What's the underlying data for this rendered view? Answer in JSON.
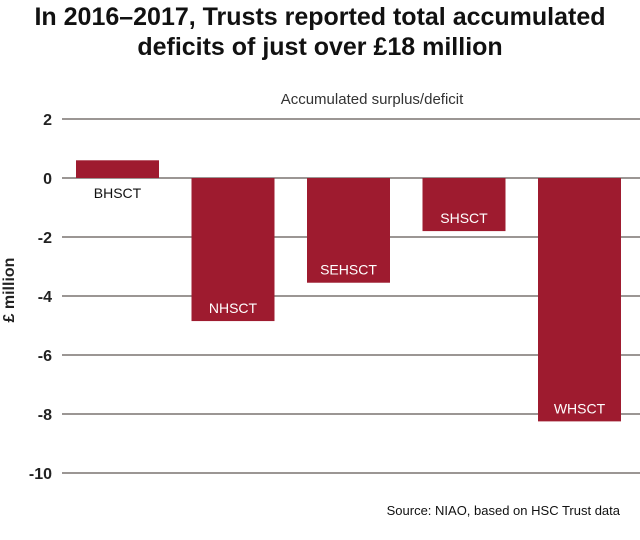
{
  "chart_data": {
    "type": "bar",
    "title": "In 2016–2017, Trusts reported total accumulated deficits of just over £18 million",
    "subtitle": "Accumulated surplus/deficit",
    "xlabel": "",
    "ylabel": "£ million",
    "categories": [
      "BHSCT",
      "NHSCT",
      "SEHSCT",
      "SHSCT",
      "WHSCT"
    ],
    "values": [
      0.6,
      -4.85,
      -3.55,
      -1.8,
      -8.25
    ],
    "ylim": [
      -10,
      2
    ],
    "yticks": [
      2,
      0,
      -2,
      -4,
      -6,
      -8,
      -10
    ],
    "grid": true,
    "bar_color": "#9e1b2f",
    "source": "Source: NIAO, based on HSC Trust data"
  }
}
